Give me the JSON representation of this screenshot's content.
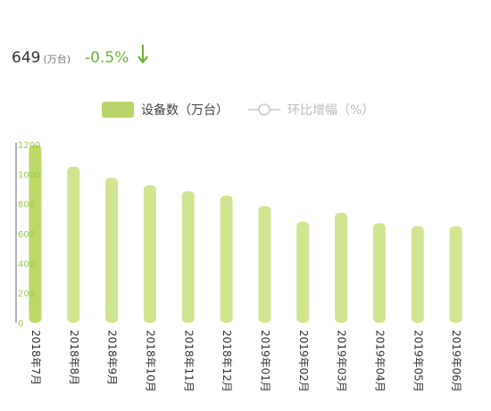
{
  "kpi": {
    "value": "649",
    "unit": "(万台)",
    "change": "-0.5%",
    "direction_icon": "arrow-down-icon",
    "change_color": "#6ab43c"
  },
  "legend": {
    "items": [
      {
        "label": "设备数（万台）",
        "color": "#b9d56a",
        "text_color": "#444444"
      },
      {
        "label": "环比增幅（%）",
        "color": "#cccccc",
        "text_color": "#bbbbbb",
        "icon": "line-circle-icon"
      }
    ]
  },
  "colors": {
    "bar": "#d1e48f",
    "bar_first": "#bcd866",
    "tick_text": "#9acb4e",
    "axis": "#666666"
  },
  "chart_data": {
    "type": "bar",
    "categories": [
      "2018年7月",
      "2018年8月",
      "2018年9月",
      "2018年10月",
      "2018年11月",
      "2018年12月",
      "2019年01月",
      "2019年02月",
      "2019年03月",
      "2019年04月",
      "2019年05月",
      "2019年06月"
    ],
    "series": [
      {
        "name": "设备数（万台）",
        "values": [
          1195,
          1050,
          975,
          925,
          885,
          855,
          785,
          680,
          740,
          670,
          650,
          649
        ]
      }
    ],
    "yticks": [
      0,
      200,
      400,
      600,
      800,
      1000,
      1200
    ],
    "ylim": [
      0,
      1200
    ],
    "legend": "top-center",
    "grid": false
  }
}
